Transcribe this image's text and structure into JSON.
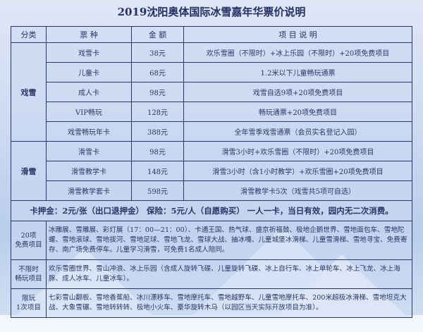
{
  "title": "2019沈阳奥体国际冰雪嘉年华票价说明",
  "headers": [
    "分类",
    "票 种",
    "金 额",
    "项 目 说 明"
  ],
  "groups": [
    {
      "category": "戏雪",
      "rows": [
        {
          "ticket": "戏雪卡",
          "price": "38元",
          "desc": "欢乐雪圈（不限时）+冰上乐园（不限时）+20项免费项目"
        },
        {
          "ticket": "儿童卡",
          "price": "68元",
          "desc": "1.2米以下儿童畅玩通票"
        },
        {
          "ticket": "成人卡",
          "price": "98元",
          "desc": "戏雪自选9项+20项免费项目"
        },
        {
          "ticket": "VIP畅玩",
          "price": "128元",
          "desc": "畅玩通票+20项免费项目"
        },
        {
          "ticket": "戏雪畅玩年卡",
          "price": "388元",
          "desc": "全年雪季戏雪通票（会员实名登记入园）"
        }
      ]
    },
    {
      "category": "滑雪",
      "rows": [
        {
          "ticket": "滑雪卡",
          "price": "98元",
          "desc": "滑雪3小时+欢乐雪圈（不限时）+20项免费项目"
        },
        {
          "ticket": "滑雪教学卡",
          "price": "148元",
          "desc": "滑雪3小时（含1小时教学）+欢乐雪圈+20项免费项目"
        },
        {
          "ticket": "滑雪教学套卡",
          "price": "598元",
          "desc": "滑雪教学卡5次（戏雪共5项可自选）"
        }
      ]
    }
  ],
  "deposit_note": "卡押金：2元/张（出口退押金） 保险：5元/人（自愿购买） 一人一卡，当日有效，园内无二次消费。",
  "projects": [
    {
      "label_1": "20项",
      "label_2": "免费项目",
      "desc": "冰雕展、雪雕展、彩灯展（17：00—21：00）、卡通王国、热气球、盛京祈福鼓、极地企鹅世界、雪地面包车、雪地陀螺、雪地滚球、雪地拔河、雪地足球、雪地飞龙、雪球大战、抽冰嘎、儿童城堡冰滑梯、儿童雪滑梯、雪地寻宝、免费寄存、南广场免费停车。儿童学习滑雪，可免费1名成人陪同。"
    },
    {
      "label_1": "不限时",
      "label_2": "畅玩项目",
      "desc": "欢乐雪圈世界、雪山冲浪、冰上乐园（含成人旋转飞碟、儿童旋转飞碟、冰上自行车、冰上单轮车、冰上飞龙、冰上海豚、成人冰车、儿童冰车）。"
    },
    {
      "label_1": "限玩",
      "label_2": "1次项目",
      "desc": "七彩雪山翻板、雪地香蕉船、冰川漂移车、雪地摩托车、雪地越野车、儿童雪地摩托车、200米超极冰滑梯、雪地坦克大战、大象雪碾、雪地转转转、极地小火车、豪华旋转木马（以园区当天实际开放项目为准）。"
    }
  ],
  "colors": {
    "border": "#2a3766",
    "text": "#2b3566",
    "background": "#cfdbf2"
  }
}
